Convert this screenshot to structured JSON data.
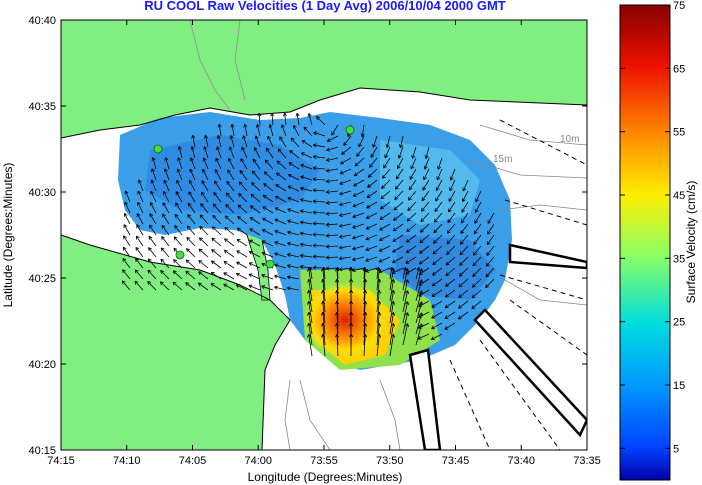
{
  "title": "RU COOL Raw Velocities (1 Day Avg) 2006/10/04 2000 GMT",
  "axes": {
    "x_label": "Longitude (Degrees:Minutes)",
    "y_label": "Latitude (Degrees:Minutes)",
    "x_ticks": [
      "74:15",
      "74:10",
      "74:05",
      "74:00",
      "73:55",
      "73:50",
      "73:45",
      "73:40",
      "73:35"
    ],
    "y_ticks": [
      "40:40",
      "40:35",
      "40:30",
      "40:25",
      "40:20",
      "40:15"
    ]
  },
  "colorbar": {
    "label": "Surface Velocity (cm/s)",
    "ticks": [
      "75",
      "65",
      "55",
      "45",
      "35",
      "25",
      "15",
      "5"
    ],
    "range": [
      0,
      75
    ]
  },
  "depth_labels": [
    "10m",
    "15m"
  ],
  "colors": {
    "land": "#80ee80",
    "water": "#ffffff",
    "title": "#1a1aff",
    "station": "#44dd44"
  }
}
